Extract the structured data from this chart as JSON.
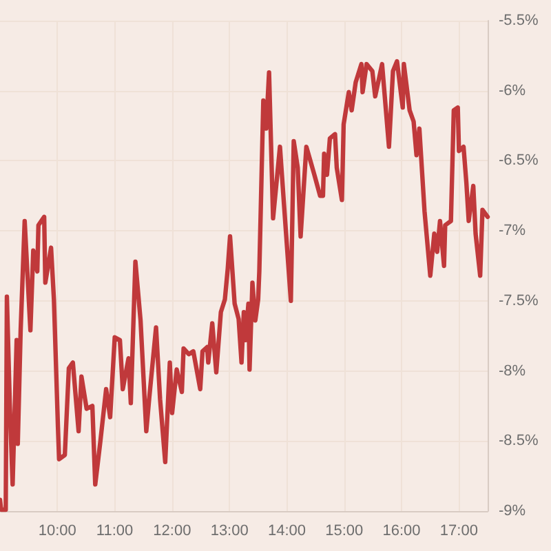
{
  "chart_data": {
    "type": "line",
    "color": "#c0393b",
    "x": [
      9.0,
      9.02,
      9.1,
      9.12,
      9.17,
      9.22,
      9.29,
      9.31,
      9.36,
      9.43,
      9.53,
      9.58,
      9.65,
      9.67,
      9.77,
      9.79,
      9.89,
      9.94,
      10.01,
      10.03,
      10.13,
      10.2,
      10.27,
      10.37,
      10.42,
      10.51,
      10.61,
      10.66,
      10.75,
      10.85,
      10.92,
      11.0,
      11.09,
      11.14,
      11.24,
      11.28,
      11.36,
      11.45,
      11.55,
      11.6,
      11.72,
      11.79,
      11.88,
      11.96,
      12.0,
      12.08,
      12.17,
      12.2,
      12.29,
      12.37,
      12.49,
      12.53,
      12.61,
      12.63,
      12.7,
      12.77,
      12.85,
      12.92,
      12.97,
      13.01,
      13.09,
      13.16,
      13.21,
      13.25,
      13.28,
      13.33,
      13.35,
      13.4,
      13.45,
      13.5,
      13.52,
      13.59,
      13.64,
      13.69,
      13.76,
      13.88,
      13.95,
      14.07,
      14.12,
      14.19,
      14.24,
      14.34,
      14.41,
      14.48,
      14.58,
      14.63,
      14.65,
      14.7,
      14.75,
      14.84,
      14.87,
      14.96,
      14.99,
      15.08,
      15.13,
      15.2,
      15.3,
      15.32,
      15.39,
      15.49,
      15.54,
      15.66,
      15.78,
      15.85,
      15.92,
      16.02,
      16.04,
      16.14,
      16.21,
      16.26,
      16.31,
      16.4,
      16.5,
      16.57,
      16.62,
      16.67,
      16.74,
      16.76,
      16.86,
      16.91,
      16.98,
      17.0,
      17.08,
      17.13,
      17.17,
      17.25,
      17.29,
      17.37,
      17.41,
      17.5
    ],
    "values": [
      -8.92,
      -8.99,
      -8.99,
      -7.47,
      -8.23,
      -8.81,
      -7.78,
      -8.52,
      -7.71,
      -6.93,
      -7.71,
      -7.14,
      -7.29,
      -6.96,
      -6.9,
      -7.37,
      -7.12,
      -7.49,
      -8.4,
      -8.63,
      -8.6,
      -7.98,
      -7.94,
      -8.43,
      -8.04,
      -8.27,
      -8.25,
      -8.81,
      -8.5,
      -8.13,
      -8.33,
      -7.76,
      -7.78,
      -8.13,
      -7.91,
      -8.23,
      -7.22,
      -7.64,
      -8.43,
      -8.2,
      -7.69,
      -8.2,
      -8.65,
      -7.94,
      -8.3,
      -7.99,
      -8.15,
      -7.84,
      -7.88,
      -7.86,
      -8.13,
      -7.86,
      -7.83,
      -7.94,
      -7.66,
      -8.01,
      -7.58,
      -7.49,
      -7.27,
      -7.04,
      -7.52,
      -7.63,
      -7.94,
      -7.58,
      -7.78,
      -7.52,
      -7.99,
      -7.37,
      -7.64,
      -7.49,
      -7.29,
      -6.07,
      -6.27,
      -5.87,
      -6.91,
      -6.4,
      -6.81,
      -7.5,
      -6.36,
      -6.55,
      -7.04,
      -6.4,
      -6.5,
      -6.6,
      -6.75,
      -6.75,
      -6.45,
      -6.6,
      -6.34,
      -6.31,
      -6.55,
      -6.78,
      -6.24,
      -6.01,
      -6.14,
      -5.94,
      -5.81,
      -6.01,
      -5.81,
      -5.86,
      -6.04,
      -5.81,
      -6.4,
      -5.86,
      -5.79,
      -6.12,
      -5.81,
      -6.14,
      -6.22,
      -6.46,
      -6.27,
      -6.86,
      -7.32,
      -7.02,
      -7.15,
      -6.93,
      -7.25,
      -6.96,
      -6.93,
      -6.14,
      -6.12,
      -6.43,
      -6.4,
      -6.66,
      -6.93,
      -6.68,
      -7.02,
      -7.32,
      -6.85,
      -6.9
    ],
    "xlim": [
      9,
      17.5
    ],
    "xticks": [
      {
        "value": 10,
        "label": "10:00"
      },
      {
        "value": 11,
        "label": "11:00"
      },
      {
        "value": 12,
        "label": "12:00"
      },
      {
        "value": 13,
        "label": "13:00"
      },
      {
        "value": 14,
        "label": "14:00"
      },
      {
        "value": 15,
        "label": "15:00"
      },
      {
        "value": 16,
        "label": "16:00"
      },
      {
        "value": 17,
        "label": "17:00"
      }
    ],
    "ylim": [
      -9,
      -5.5
    ],
    "yticks": [
      {
        "value": -9,
        "label": "-9%"
      },
      {
        "value": -8.5,
        "label": "-8.5%"
      },
      {
        "value": -8,
        "label": "-8%"
      },
      {
        "value": -7.5,
        "label": "-7.5%"
      },
      {
        "value": -7,
        "label": "-7%"
      },
      {
        "value": -6.5,
        "label": "-6.5%"
      },
      {
        "value": -6,
        "label": "-6%"
      },
      {
        "value": -5.5,
        "label": "-5.5%"
      }
    ],
    "grid": true
  }
}
